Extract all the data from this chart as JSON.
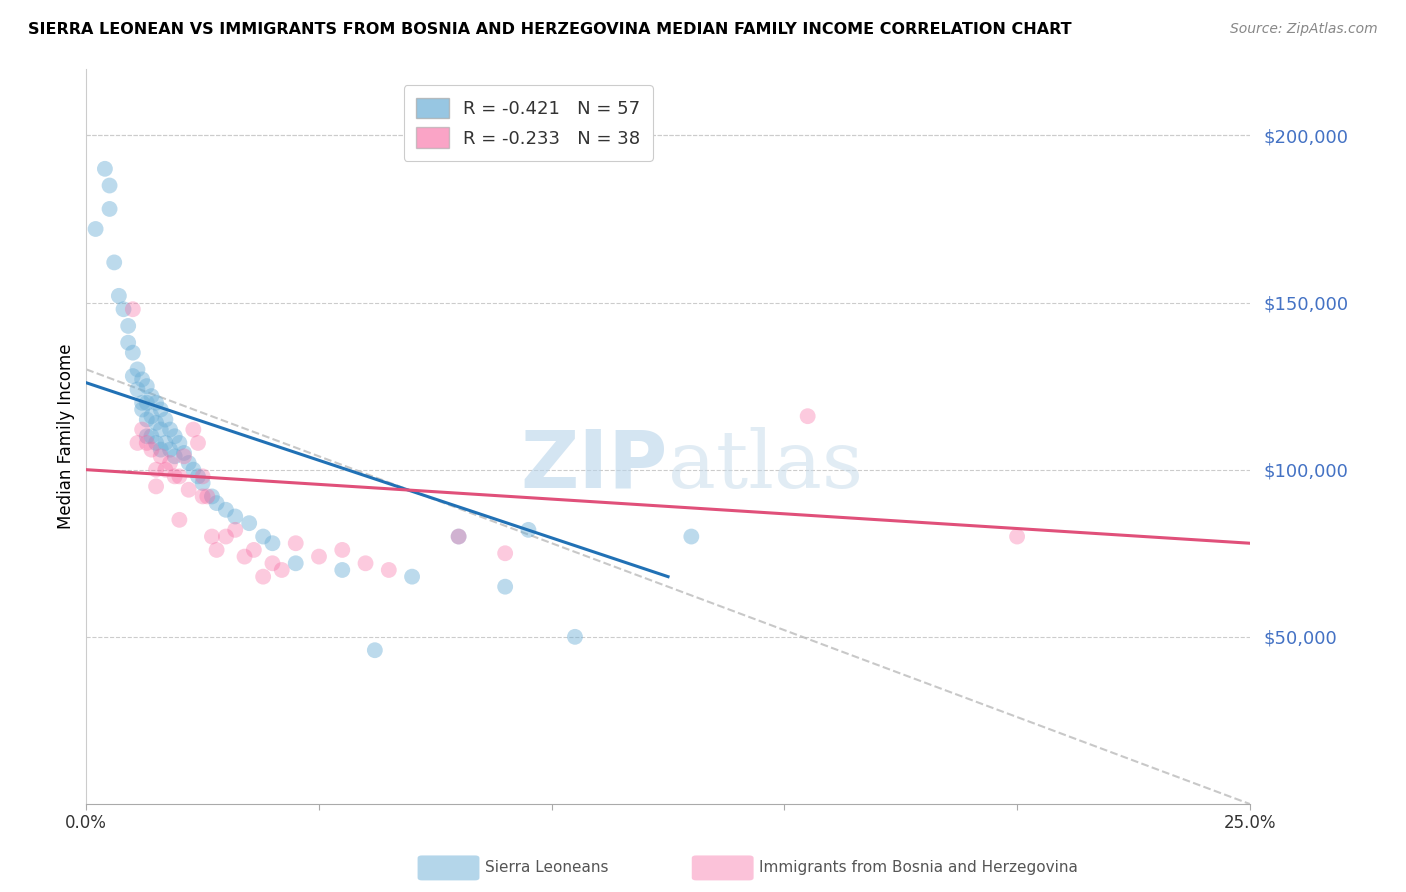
{
  "title": "SIERRA LEONEAN VS IMMIGRANTS FROM BOSNIA AND HERZEGOVINA MEDIAN FAMILY INCOME CORRELATION CHART",
  "source": "Source: ZipAtlas.com",
  "ylabel": "Median Family Income",
  "ytick_labels": [
    "$200,000",
    "$150,000",
    "$100,000",
    "$50,000"
  ],
  "ytick_values": [
    200000,
    150000,
    100000,
    50000
  ],
  "ymin": 0,
  "ymax": 220000,
  "xmin": 0.0,
  "xmax": 0.25,
  "watermark_zip": "ZIP",
  "watermark_atlas": "atlas",
  "legend1_r": "R = -0.421",
  "legend1_n": "N = 57",
  "legend2_r": "R = -0.233",
  "legend2_n": "N = 38",
  "blue_color": "#6baed6",
  "pink_color": "#f768a1",
  "blue_line_color": "#2171b5",
  "pink_line_color": "#e0507a",
  "dashed_line_color": "#bbbbbb",
  "blue_scatter_x": [
    0.002,
    0.004,
    0.005,
    0.005,
    0.006,
    0.007,
    0.008,
    0.009,
    0.009,
    0.01,
    0.01,
    0.011,
    0.011,
    0.012,
    0.012,
    0.012,
    0.013,
    0.013,
    0.013,
    0.013,
    0.014,
    0.014,
    0.014,
    0.015,
    0.015,
    0.015,
    0.016,
    0.016,
    0.016,
    0.017,
    0.017,
    0.018,
    0.018,
    0.019,
    0.019,
    0.02,
    0.021,
    0.022,
    0.023,
    0.024,
    0.025,
    0.027,
    0.028,
    0.03,
    0.032,
    0.035,
    0.038,
    0.04,
    0.045,
    0.055,
    0.062,
    0.07,
    0.08,
    0.09,
    0.095,
    0.105,
    0.13
  ],
  "blue_scatter_y": [
    172000,
    190000,
    185000,
    178000,
    162000,
    152000,
    148000,
    143000,
    138000,
    135000,
    128000,
    130000,
    124000,
    127000,
    120000,
    118000,
    125000,
    120000,
    115000,
    110000,
    122000,
    116000,
    110000,
    120000,
    114000,
    108000,
    118000,
    112000,
    106000,
    115000,
    108000,
    112000,
    106000,
    110000,
    104000,
    108000,
    105000,
    102000,
    100000,
    98000,
    96000,
    92000,
    90000,
    88000,
    86000,
    84000,
    80000,
    78000,
    72000,
    70000,
    46000,
    68000,
    80000,
    65000,
    82000,
    50000,
    80000
  ],
  "pink_scatter_x": [
    0.01,
    0.011,
    0.012,
    0.013,
    0.014,
    0.015,
    0.015,
    0.016,
    0.017,
    0.018,
    0.019,
    0.02,
    0.021,
    0.022,
    0.023,
    0.024,
    0.025,
    0.026,
    0.027,
    0.028,
    0.03,
    0.032,
    0.034,
    0.036,
    0.038,
    0.04,
    0.042,
    0.045,
    0.05,
    0.055,
    0.06,
    0.065,
    0.08,
    0.09,
    0.155,
    0.2,
    0.02,
    0.025
  ],
  "pink_scatter_y": [
    148000,
    108000,
    112000,
    108000,
    106000,
    100000,
    95000,
    104000,
    100000,
    102000,
    98000,
    98000,
    104000,
    94000,
    112000,
    108000,
    92000,
    92000,
    80000,
    76000,
    80000,
    82000,
    74000,
    76000,
    68000,
    72000,
    70000,
    78000,
    74000,
    76000,
    72000,
    70000,
    80000,
    75000,
    116000,
    80000,
    85000,
    98000
  ],
  "blue_line_x": [
    0.0,
    0.125
  ],
  "blue_line_y": [
    126000,
    68000
  ],
  "pink_line_x": [
    0.0,
    0.25
  ],
  "pink_line_y": [
    100000,
    78000
  ],
  "dashed_line_x": [
    0.0,
    0.25
  ],
  "dashed_line_y": [
    130000,
    0
  ],
  "background_color": "#ffffff"
}
